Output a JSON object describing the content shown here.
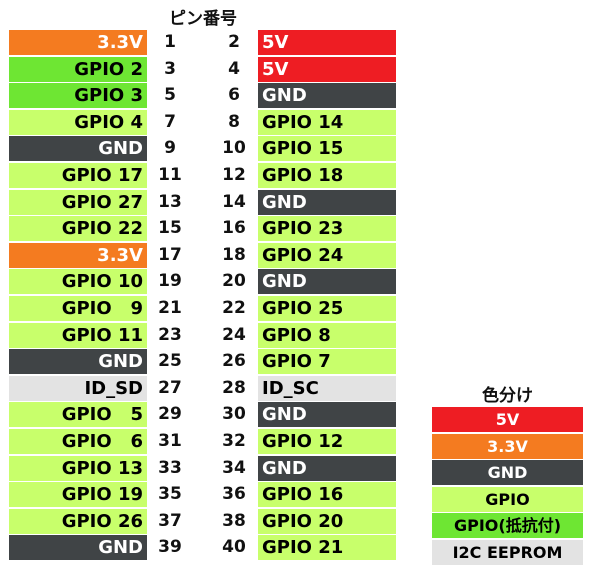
{
  "header": "ピン番号",
  "colors": {
    "5v": {
      "bg": "#ee1d23",
      "fg": "#ffffff"
    },
    "3v3": {
      "bg": "#f47b20",
      "fg": "#ffffff"
    },
    "gnd": {
      "bg": "#404446",
      "fg": "#ffffff"
    },
    "gpio": {
      "bg": "#c8ff6b",
      "fg": "#000000"
    },
    "gpio_pullup": {
      "bg": "#6ee633",
      "fg": "#000000"
    },
    "eeprom": {
      "bg": "#e3e3e3",
      "fg": "#000000"
    }
  },
  "rows": [
    {
      "left": {
        "label": "3.3V",
        "type": "3v3"
      },
      "pin_left": "1",
      "pin_right": "2",
      "right": {
        "label": "5V",
        "type": "5v"
      }
    },
    {
      "left": {
        "label": "GPIO 2",
        "type": "gpio_pullup"
      },
      "pin_left": "3",
      "pin_right": "4",
      "right": {
        "label": "5V",
        "type": "5v"
      }
    },
    {
      "left": {
        "label": "GPIO 3",
        "type": "gpio_pullup"
      },
      "pin_left": "5",
      "pin_right": "6",
      "right": {
        "label": "GND",
        "type": "gnd"
      }
    },
    {
      "left": {
        "label": "GPIO 4",
        "type": "gpio"
      },
      "pin_left": "7",
      "pin_right": "8",
      "right": {
        "label": "GPIO 14",
        "type": "gpio"
      }
    },
    {
      "left": {
        "label": "GND",
        "type": "gnd"
      },
      "pin_left": "9",
      "pin_right": "10",
      "right": {
        "label": "GPIO 15",
        "type": "gpio"
      }
    },
    {
      "left": {
        "label": "GPIO 17",
        "type": "gpio"
      },
      "pin_left": "11",
      "pin_right": "12",
      "right": {
        "label": "GPIO 18",
        "type": "gpio"
      }
    },
    {
      "left": {
        "label": "GPIO 27",
        "type": "gpio"
      },
      "pin_left": "13",
      "pin_right": "14",
      "right": {
        "label": "GND",
        "type": "gnd"
      }
    },
    {
      "left": {
        "label": "GPIO 22",
        "type": "gpio"
      },
      "pin_left": "15",
      "pin_right": "16",
      "right": {
        "label": "GPIO 23",
        "type": "gpio"
      }
    },
    {
      "left": {
        "label": "3.3V",
        "type": "3v3"
      },
      "pin_left": "17",
      "pin_right": "18",
      "right": {
        "label": "GPIO 24",
        "type": "gpio"
      }
    },
    {
      "left": {
        "label": "GPIO 10",
        "type": "gpio"
      },
      "pin_left": "19",
      "pin_right": "20",
      "right": {
        "label": "GND",
        "type": "gnd"
      }
    },
    {
      "left": {
        "label": "GPIO   9",
        "type": "gpio"
      },
      "pin_left": "21",
      "pin_right": "22",
      "right": {
        "label": "GPIO 25",
        "type": "gpio"
      }
    },
    {
      "left": {
        "label": "GPIO 11",
        "type": "gpio"
      },
      "pin_left": "23",
      "pin_right": "24",
      "right": {
        "label": "GPIO 8",
        "type": "gpio"
      }
    },
    {
      "left": {
        "label": "GND",
        "type": "gnd"
      },
      "pin_left": "25",
      "pin_right": "26",
      "right": {
        "label": "GPIO 7",
        "type": "gpio"
      }
    },
    {
      "left": {
        "label": "ID_SD",
        "type": "eeprom"
      },
      "pin_left": "27",
      "pin_right": "28",
      "right": {
        "label": "ID_SC",
        "type": "eeprom"
      }
    },
    {
      "left": {
        "label": "GPIO   5",
        "type": "gpio"
      },
      "pin_left": "29",
      "pin_right": "30",
      "right": {
        "label": "GND",
        "type": "gnd"
      }
    },
    {
      "left": {
        "label": "GPIO   6",
        "type": "gpio"
      },
      "pin_left": "31",
      "pin_right": "32",
      "right": {
        "label": "GPIO 12",
        "type": "gpio"
      }
    },
    {
      "left": {
        "label": "GPIO 13",
        "type": "gpio"
      },
      "pin_left": "33",
      "pin_right": "34",
      "right": {
        "label": "GND",
        "type": "gnd"
      }
    },
    {
      "left": {
        "label": "GPIO 19",
        "type": "gpio"
      },
      "pin_left": "35",
      "pin_right": "36",
      "right": {
        "label": "GPIO 16",
        "type": "gpio"
      }
    },
    {
      "left": {
        "label": "GPIO 26",
        "type": "gpio"
      },
      "pin_left": "37",
      "pin_right": "38",
      "right": {
        "label": "GPIO 20",
        "type": "gpio"
      }
    },
    {
      "left": {
        "label": "GND",
        "type": "gnd"
      },
      "pin_left": "39",
      "pin_right": "40",
      "right": {
        "label": "GPIO 21",
        "type": "gpio"
      }
    }
  ],
  "legend": {
    "title": "色分け",
    "items": [
      {
        "label": "5V",
        "type": "5v"
      },
      {
        "label": "3.3V",
        "type": "3v3"
      },
      {
        "label": "GND",
        "type": "gnd"
      },
      {
        "label": "GPIO",
        "type": "gpio"
      },
      {
        "label": "GPIO(抵抗付)",
        "type": "gpio_pullup"
      },
      {
        "label": "I2C EEPROM",
        "type": "eeprom"
      }
    ]
  }
}
